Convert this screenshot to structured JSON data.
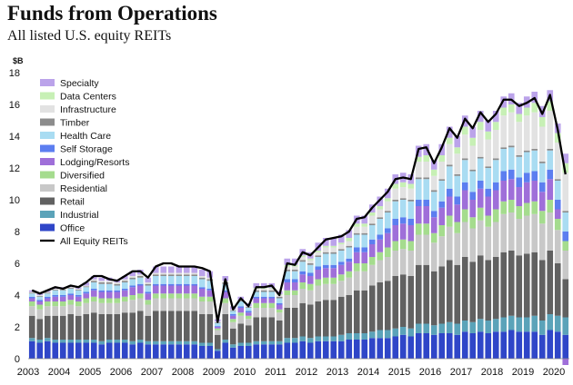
{
  "header": {
    "title": "Funds from Operations",
    "subtitle": "All listed U.S. equity REITs"
  },
  "chart_data": {
    "type": "bar",
    "stacked": true,
    "title": "Funds from Operations",
    "subtitle": "All listed U.S. equity REITs",
    "ylabel": "$B",
    "ylim": [
      0,
      18
    ],
    "yticks": [
      0,
      2,
      4,
      6,
      8,
      10,
      12,
      14,
      16,
      18
    ],
    "x_tick_labels": [
      "2003",
      "2004",
      "2005",
      "2006",
      "2007",
      "2008",
      "2009",
      "2010",
      "2011",
      "2012",
      "2013",
      "2014",
      "2015",
      "2016",
      "2017",
      "2018",
      "2019",
      "2020"
    ],
    "grid": false,
    "legend_position": "top-left",
    "total": [
      4.3,
      4.1,
      4.3,
      4.5,
      4.4,
      4.6,
      4.5,
      4.8,
      5.2,
      5.2,
      5.0,
      4.9,
      5.2,
      5.5,
      5.5,
      5.1,
      5.8,
      6.0,
      6.0,
      5.8,
      5.8,
      5.8,
      5.7,
      5.5,
      2.3,
      5.0,
      3.1,
      3.8,
      3.3,
      4.5,
      4.5,
      4.6,
      4.0,
      6.0,
      5.9,
      6.7,
      6.5,
      7.0,
      7.5,
      7.6,
      7.7,
      8.0,
      8.8,
      8.9,
      9.5,
      10.0,
      10.5,
      11.3,
      11.4,
      11.3,
      13.2,
      13.3,
      12.3,
      13.3,
      14.5,
      13.9,
      15.1,
      14.5,
      15.5,
      14.9,
      15.4,
      16.3,
      16.3,
      15.9,
      16.1,
      16.4,
      15.4,
      16.6,
      14.4,
      11.6
    ],
    "series": [
      {
        "name": "Office",
        "color": "#2f46c8",
        "values": [
          1.1,
          1.0,
          1.1,
          1.0,
          1.0,
          1.0,
          1.0,
          1.0,
          1.0,
          0.9,
          1.0,
          1.0,
          1.0,
          0.9,
          1.0,
          0.9,
          0.9,
          0.9,
          0.9,
          0.9,
          0.9,
          0.9,
          0.8,
          0.8,
          0.5,
          1.0,
          0.7,
          0.8,
          0.8,
          0.9,
          0.9,
          0.9,
          0.9,
          1.0,
          1.0,
          1.1,
          1.0,
          1.1,
          1.1,
          1.1,
          1.1,
          1.2,
          1.2,
          1.2,
          1.3,
          1.3,
          1.3,
          1.4,
          1.5,
          1.4,
          1.6,
          1.6,
          1.5,
          1.6,
          1.6,
          1.5,
          1.7,
          1.6,
          1.7,
          1.6,
          1.7,
          1.7,
          1.8,
          1.7,
          1.7,
          1.7,
          1.5,
          1.8,
          1.7,
          1.5
        ]
      },
      {
        "name": "Industrial",
        "color": "#5ba3b9",
        "values": [
          0.2,
          0.2,
          0.2,
          0.2,
          0.2,
          0.2,
          0.2,
          0.2,
          0.2,
          0.2,
          0.2,
          0.2,
          0.2,
          0.2,
          0.2,
          0.2,
          0.2,
          0.2,
          0.2,
          0.2,
          0.2,
          0.2,
          0.2,
          0.2,
          0.1,
          0.2,
          0.2,
          0.2,
          0.2,
          0.2,
          0.2,
          0.2,
          0.2,
          0.3,
          0.3,
          0.3,
          0.3,
          0.3,
          0.3,
          0.3,
          0.4,
          0.4,
          0.4,
          0.4,
          0.4,
          0.5,
          0.5,
          0.5,
          0.5,
          0.5,
          0.6,
          0.6,
          0.6,
          0.6,
          0.7,
          0.7,
          0.7,
          0.7,
          0.8,
          0.8,
          0.8,
          0.9,
          0.9,
          0.9,
          0.9,
          1.0,
          0.9,
          1.0,
          1.0,
          1.1
        ]
      },
      {
        "name": "Retail",
        "color": "#616161",
        "values": [
          1.4,
          1.3,
          1.4,
          1.5,
          1.5,
          1.6,
          1.5,
          1.6,
          1.7,
          1.7,
          1.6,
          1.6,
          1.7,
          1.8,
          1.8,
          1.6,
          1.9,
          1.9,
          1.9,
          1.9,
          1.9,
          1.9,
          1.8,
          1.8,
          0.9,
          1.6,
          1.0,
          1.2,
          1.1,
          1.5,
          1.5,
          1.5,
          1.3,
          1.9,
          1.9,
          2.1,
          2.1,
          2.2,
          2.3,
          2.3,
          2.4,
          2.4,
          2.7,
          2.7,
          2.9,
          3.0,
          3.1,
          3.3,
          3.3,
          3.3,
          3.7,
          3.7,
          3.4,
          3.6,
          3.9,
          3.7,
          4.0,
          3.8,
          4.0,
          3.8,
          3.9,
          4.1,
          4.1,
          3.9,
          4.0,
          4.0,
          3.8,
          4.0,
          3.3,
          2.4
        ]
      },
      {
        "name": "Residential",
        "color": "#c8c8c8",
        "values": [
          0.6,
          0.6,
          0.6,
          0.6,
          0.6,
          0.6,
          0.6,
          0.7,
          0.7,
          0.7,
          0.7,
          0.7,
          0.7,
          0.8,
          0.8,
          0.7,
          0.8,
          0.8,
          0.8,
          0.8,
          0.8,
          0.8,
          0.8,
          0.8,
          0.3,
          0.7,
          0.4,
          0.5,
          0.4,
          0.6,
          0.6,
          0.6,
          0.5,
          0.8,
          0.8,
          0.9,
          0.9,
          1.0,
          1.0,
          1.0,
          1.0,
          1.1,
          1.2,
          1.2,
          1.3,
          1.4,
          1.5,
          1.6,
          1.6,
          1.6,
          1.9,
          1.9,
          1.8,
          1.9,
          2.1,
          2.0,
          2.2,
          2.1,
          2.2,
          2.1,
          2.2,
          2.4,
          2.4,
          2.3,
          2.4,
          2.4,
          2.3,
          2.4,
          2.1,
          1.8
        ]
      },
      {
        "name": "Diversified",
        "color": "#a5dc8e",
        "values": [
          0.3,
          0.3,
          0.3,
          0.3,
          0.3,
          0.3,
          0.3,
          0.3,
          0.3,
          0.3,
          0.3,
          0.3,
          0.3,
          0.3,
          0.3,
          0.3,
          0.3,
          0.3,
          0.3,
          0.3,
          0.3,
          0.3,
          0.3,
          0.3,
          0.1,
          0.3,
          0.2,
          0.2,
          0.2,
          0.3,
          0.3,
          0.3,
          0.2,
          0.3,
          0.3,
          0.4,
          0.4,
          0.4,
          0.4,
          0.4,
          0.4,
          0.4,
          0.5,
          0.5,
          0.5,
          0.5,
          0.6,
          0.6,
          0.6,
          0.6,
          0.7,
          0.7,
          0.6,
          0.7,
          0.7,
          0.7,
          0.8,
          0.7,
          0.8,
          0.7,
          0.8,
          0.8,
          0.8,
          0.8,
          0.8,
          0.8,
          0.8,
          0.8,
          0.7,
          0.6
        ]
      },
      {
        "name": "Lodging/Resorts",
        "color": "#9f6fd9",
        "values": [
          0.2,
          0.2,
          0.2,
          0.3,
          0.3,
          0.3,
          0.3,
          0.3,
          0.4,
          0.4,
          0.4,
          0.4,
          0.4,
          0.5,
          0.5,
          0.4,
          0.5,
          0.5,
          0.5,
          0.5,
          0.5,
          0.5,
          0.5,
          0.4,
          0.1,
          0.4,
          0.2,
          0.3,
          0.2,
          0.3,
          0.3,
          0.3,
          0.3,
          0.5,
          0.5,
          0.5,
          0.5,
          0.6,
          0.6,
          0.6,
          0.6,
          0.6,
          0.7,
          0.7,
          0.8,
          0.8,
          0.9,
          1.0,
          1.0,
          1.0,
          1.1,
          1.1,
          1.0,
          1.1,
          1.2,
          1.1,
          1.2,
          1.1,
          1.2,
          1.2,
          1.2,
          1.3,
          1.3,
          1.2,
          1.3,
          1.3,
          1.2,
          1.3,
          0.6,
          -0.4
        ]
      },
      {
        "name": "Self Storage",
        "color": "#5c7ef0",
        "values": [
          0.1,
          0.1,
          0.1,
          0.1,
          0.1,
          0.1,
          0.1,
          0.1,
          0.1,
          0.1,
          0.1,
          0.1,
          0.1,
          0.1,
          0.1,
          0.1,
          0.1,
          0.1,
          0.1,
          0.1,
          0.1,
          0.1,
          0.1,
          0.1,
          0.05,
          0.1,
          0.1,
          0.1,
          0.1,
          0.1,
          0.1,
          0.1,
          0.1,
          0.2,
          0.2,
          0.2,
          0.2,
          0.2,
          0.2,
          0.2,
          0.2,
          0.2,
          0.3,
          0.3,
          0.3,
          0.3,
          0.3,
          0.4,
          0.4,
          0.4,
          0.4,
          0.4,
          0.4,
          0.4,
          0.5,
          0.5,
          0.5,
          0.5,
          0.5,
          0.5,
          0.5,
          0.6,
          0.6,
          0.6,
          0.6,
          0.6,
          0.6,
          0.6,
          0.6,
          0.6
        ]
      },
      {
        "name": "Health Care",
        "color": "#a9dcf2",
        "values": [
          0.2,
          0.2,
          0.2,
          0.3,
          0.3,
          0.3,
          0.3,
          0.3,
          0.4,
          0.4,
          0.4,
          0.3,
          0.4,
          0.4,
          0.4,
          0.4,
          0.5,
          0.5,
          0.5,
          0.5,
          0.5,
          0.5,
          0.5,
          0.5,
          0.2,
          0.4,
          0.2,
          0.3,
          0.2,
          0.3,
          0.3,
          0.3,
          0.3,
          0.5,
          0.5,
          0.6,
          0.5,
          0.6,
          0.7,
          0.7,
          0.7,
          0.7,
          0.8,
          0.8,
          0.9,
          1.0,
          1.0,
          1.1,
          1.1,
          1.1,
          1.3,
          1.3,
          1.2,
          1.3,
          1.4,
          1.3,
          1.4,
          1.3,
          1.4,
          1.3,
          1.4,
          1.4,
          1.4,
          1.3,
          1.3,
          1.3,
          1.2,
          1.2,
          1.2,
          1.2
        ]
      },
      {
        "name": "Timber",
        "color": "#8c8c8c",
        "values": [
          0.05,
          0.05,
          0.05,
          0.05,
          0.05,
          0.05,
          0.05,
          0.05,
          0.1,
          0.1,
          0.1,
          0.1,
          0.1,
          0.1,
          0.1,
          0.1,
          0.1,
          0.1,
          0.1,
          0.1,
          0.1,
          0.1,
          0.1,
          0.1,
          0.04,
          0.1,
          0.05,
          0.05,
          0.05,
          0.1,
          0.1,
          0.1,
          0.1,
          0.1,
          0.1,
          0.1,
          0.1,
          0.1,
          0.1,
          0.1,
          0.1,
          0.1,
          0.1,
          0.1,
          0.1,
          0.1,
          0.1,
          0.1,
          0.1,
          0.1,
          0.1,
          0.1,
          0.1,
          0.1,
          0.1,
          0.1,
          0.1,
          0.1,
          0.1,
          0.1,
          0.1,
          0.1,
          0.1,
          0.1,
          0.1,
          0.1,
          0.1,
          0.1,
          0.1,
          0.1
        ]
      },
      {
        "name": "Infrastructure",
        "color": "#e2e2e2",
        "values": [
          0.05,
          0.05,
          0.05,
          0.05,
          0.05,
          0.05,
          0.05,
          0.05,
          0.1,
          0.1,
          0.1,
          0.1,
          0.1,
          0.1,
          0.1,
          0.1,
          0.1,
          0.1,
          0.1,
          0.1,
          0.1,
          0.1,
          0.1,
          0.1,
          0.04,
          0.1,
          0.05,
          0.05,
          0.05,
          0.1,
          0.1,
          0.1,
          0.1,
          0.2,
          0.2,
          0.2,
          0.2,
          0.2,
          0.3,
          0.3,
          0.3,
          0.3,
          0.4,
          0.4,
          0.5,
          0.5,
          0.6,
          0.7,
          0.7,
          0.7,
          1.0,
          1.0,
          0.9,
          1.1,
          1.3,
          1.3,
          1.5,
          1.5,
          1.7,
          1.7,
          1.8,
          2.0,
          2.1,
          2.1,
          2.2,
          2.3,
          2.2,
          2.4,
          2.3,
          2.4
        ]
      },
      {
        "name": "Data Centers",
        "color": "#c7f0b5",
        "values": [
          0.0,
          0.0,
          0.0,
          0.0,
          0.0,
          0.0,
          0.0,
          0.0,
          0.0,
          0.0,
          0.0,
          0.0,
          0.0,
          0.0,
          0.0,
          0.0,
          0.0,
          0.0,
          0.0,
          0.0,
          0.0,
          0.0,
          0.0,
          0.0,
          0.0,
          0.0,
          0.0,
          0.0,
          0.0,
          0.05,
          0.05,
          0.05,
          0.05,
          0.1,
          0.1,
          0.1,
          0.1,
          0.1,
          0.1,
          0.1,
          0.1,
          0.2,
          0.2,
          0.2,
          0.2,
          0.2,
          0.2,
          0.3,
          0.3,
          0.3,
          0.3,
          0.4,
          0.4,
          0.4,
          0.4,
          0.4,
          0.5,
          0.5,
          0.5,
          0.5,
          0.5,
          0.5,
          0.5,
          0.5,
          0.5,
          0.6,
          0.6,
          0.6,
          0.6,
          0.6
        ]
      },
      {
        "name": "Specialty",
        "color": "#bba3ea",
        "values": [
          0.1,
          0.1,
          0.1,
          0.1,
          0.1,
          0.1,
          0.1,
          0.2,
          0.2,
          0.2,
          0.2,
          0.2,
          0.2,
          0.3,
          0.3,
          0.3,
          0.4,
          0.4,
          0.4,
          0.4,
          0.4,
          0.4,
          0.4,
          0.4,
          0.15,
          0.3,
          0.2,
          0.2,
          0.2,
          0.3,
          0.3,
          0.3,
          0.2,
          0.4,
          0.4,
          0.4,
          0.4,
          0.5,
          0.5,
          0.5,
          0.5,
          0.5,
          0.5,
          0.5,
          0.5,
          0.6,
          0.6,
          0.6,
          0.6,
          0.6,
          0.7,
          0.7,
          0.6,
          0.7,
          0.7,
          0.7,
          0.7,
          0.7,
          0.7,
          0.7,
          0.7,
          0.7,
          0.7,
          0.7,
          0.7,
          0.7,
          0.7,
          0.7,
          0.6,
          0.6
        ]
      }
    ],
    "total_series_name": "All Equity REITs"
  }
}
